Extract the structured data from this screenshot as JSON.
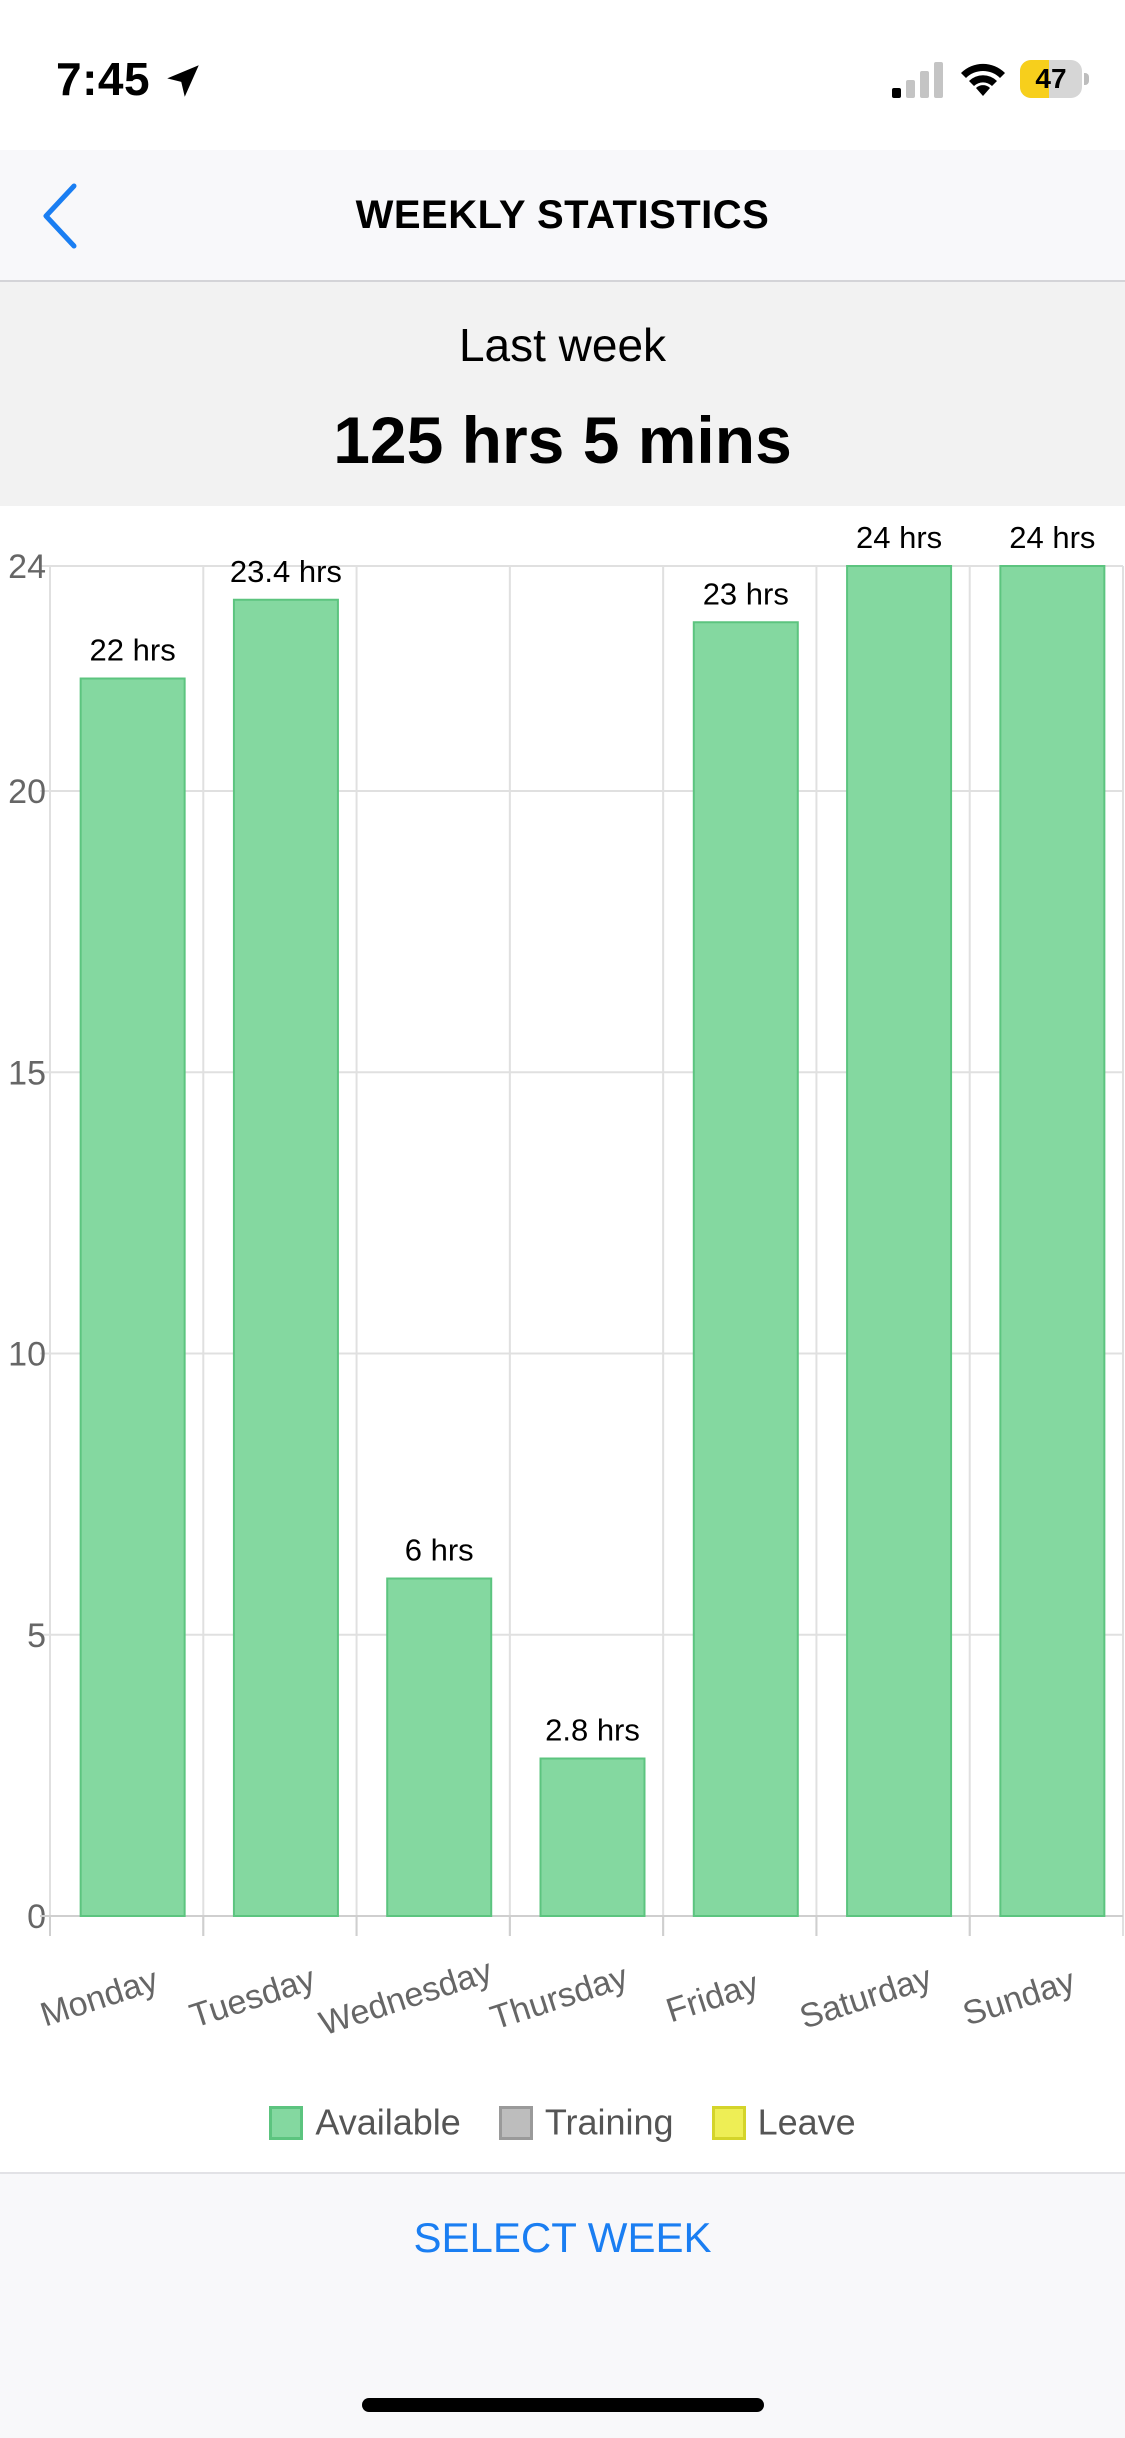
{
  "status_bar": {
    "time": "7:45",
    "battery_level": "47",
    "icons": [
      "location-arrow-icon",
      "cellular-signal-icon",
      "wifi-icon",
      "battery-charging-icon"
    ]
  },
  "nav": {
    "title": "WEEKLY STATISTICS",
    "back_icon": "chevron-left-icon"
  },
  "summary": {
    "period": "Last week",
    "total": "125 hrs 5 mins"
  },
  "chart_data": {
    "type": "bar",
    "categories": [
      "Monday",
      "Tuesday",
      "Wednesday",
      "Thursday",
      "Friday",
      "Saturday",
      "Sunday"
    ],
    "series": [
      {
        "name": "Available",
        "values": [
          22,
          23.4,
          6,
          2.8,
          23,
          24,
          24
        ],
        "color": "#84d8a0",
        "border": "#5cc47f"
      }
    ],
    "data_labels": [
      "22 hrs",
      "23.4 hrs",
      "6 hrs",
      "2.8 hrs",
      "23 hrs",
      "24 hrs",
      "24 hrs"
    ],
    "y_ticks": [
      0,
      5,
      10,
      15,
      20,
      24
    ],
    "ylim": [
      0,
      24
    ],
    "grid": true,
    "legend_position": "bottom"
  },
  "legend": [
    {
      "label": "Available",
      "fill": "#84d8a0",
      "border": "#5cc47f"
    },
    {
      "label": "Training",
      "fill": "#bdbdbd",
      "border": "#9a9a9a"
    },
    {
      "label": "Leave",
      "fill": "#eeee55",
      "border": "#d4d42a"
    }
  ],
  "footer": {
    "select_week_label": "SELECT WEEK"
  },
  "colors": {
    "accent": "#1a7ef2",
    "battery": "#f7cf1c"
  }
}
